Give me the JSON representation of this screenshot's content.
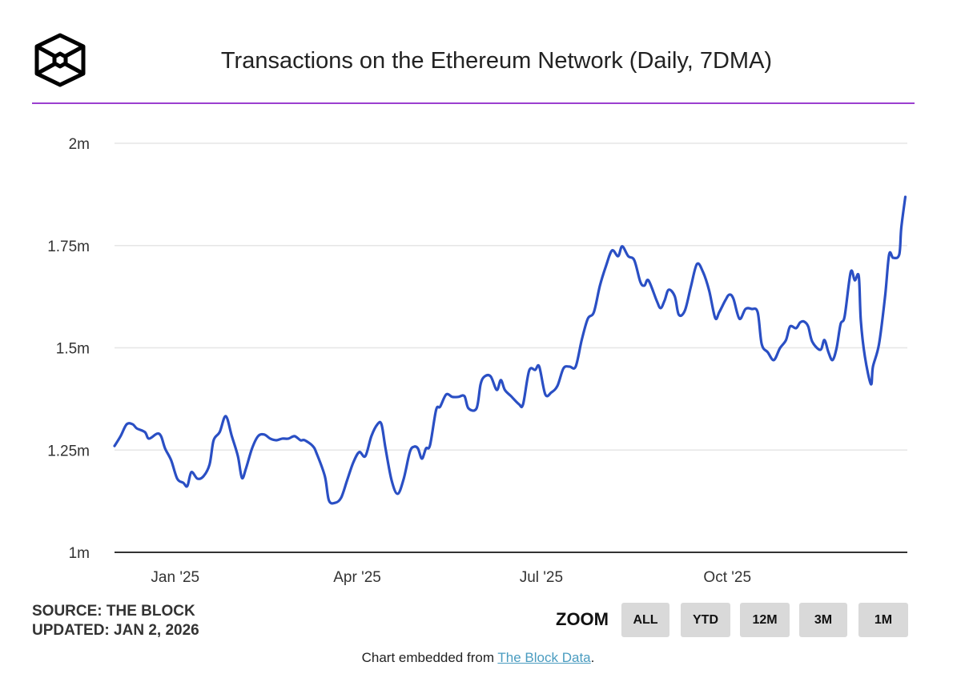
{
  "logo": {
    "icon": "the-block-cube-logo",
    "text": "The Block"
  },
  "colors": {
    "line": "#2a4fc4",
    "rule": "#9b3fd0",
    "grid": "#e6e6e6",
    "axis": "#333333",
    "button_bg": "#d9d9d9",
    "link": "#4a9cc0"
  },
  "footer": {
    "source": "SOURCE: THE BLOCK",
    "updated": "UPDATED: JAN 2, 2026",
    "zoom_label": "ZOOM",
    "zoom_buttons": [
      "ALL",
      "YTD",
      "12M",
      "3M",
      "1M"
    ],
    "caption_prefix": "Chart embedded from ",
    "caption_link": "The Block Data",
    "caption_suffix": "."
  },
  "chart_data": {
    "type": "line",
    "title": "Transactions on the Ethereum Network (Daily, 7DMA)",
    "xlabel": "",
    "ylabel": "",
    "xlim": [
      "2024-12-02",
      "2025-12-29"
    ],
    "ylim": [
      1.0,
      2.0
    ],
    "y_unit": "millions",
    "yticks": [
      1.0,
      1.25,
      1.5,
      1.75,
      2.0
    ],
    "ytick_labels": [
      "1m",
      "1.25m",
      "1.5m",
      "1.75m",
      "2m"
    ],
    "xticks": [
      "2025-01-01",
      "2025-04-01",
      "2025-07-01",
      "2025-10-01"
    ],
    "xtick_labels": [
      "Jan '25",
      "Apr '25",
      "Jul '25",
      "Oct '25"
    ],
    "grid": true,
    "legend": "none",
    "series": [
      {
        "points": [
          [
            "2024-12-02",
            1.26
          ],
          [
            "2024-12-05",
            1.284
          ],
          [
            "2024-12-08",
            1.313
          ],
          [
            "2024-12-11",
            1.313
          ],
          [
            "2024-12-13",
            1.303
          ],
          [
            "2024-12-17",
            1.294
          ],
          [
            "2024-12-19",
            1.278
          ],
          [
            "2024-12-23",
            1.29
          ],
          [
            "2024-12-25",
            1.284
          ],
          [
            "2024-12-27",
            1.254
          ],
          [
            "2024-12-30",
            1.225
          ],
          [
            "2025-01-02",
            1.18
          ],
          [
            "2025-01-05",
            1.17
          ],
          [
            "2025-01-07",
            1.162
          ],
          [
            "2025-01-09",
            1.196
          ],
          [
            "2025-01-12",
            1.18
          ],
          [
            "2025-01-15",
            1.186
          ],
          [
            "2025-01-18",
            1.215
          ],
          [
            "2025-01-20",
            1.274
          ],
          [
            "2025-01-23",
            1.294
          ],
          [
            "2025-01-26",
            1.333
          ],
          [
            "2025-01-29",
            1.284
          ],
          [
            "2025-02-01",
            1.235
          ],
          [
            "2025-02-03",
            1.182
          ],
          [
            "2025-02-05",
            1.205
          ],
          [
            "2025-02-08",
            1.254
          ],
          [
            "2025-02-11",
            1.284
          ],
          [
            "2025-02-14",
            1.288
          ],
          [
            "2025-02-17",
            1.278
          ],
          [
            "2025-02-20",
            1.274
          ],
          [
            "2025-02-23",
            1.278
          ],
          [
            "2025-02-26",
            1.278
          ],
          [
            "2025-03-01",
            1.284
          ],
          [
            "2025-03-04",
            1.274
          ],
          [
            "2025-03-06",
            1.274
          ],
          [
            "2025-03-10",
            1.26
          ],
          [
            "2025-03-12",
            1.241
          ],
          [
            "2025-03-16",
            1.186
          ],
          [
            "2025-03-18",
            1.127
          ],
          [
            "2025-03-21",
            1.121
          ],
          [
            "2025-03-24",
            1.133
          ],
          [
            "2025-03-27",
            1.176
          ],
          [
            "2025-03-30",
            1.219
          ],
          [
            "2025-04-02",
            1.245
          ],
          [
            "2025-04-05",
            1.235
          ],
          [
            "2025-04-08",
            1.284
          ],
          [
            "2025-04-11",
            1.313
          ],
          [
            "2025-04-13",
            1.313
          ],
          [
            "2025-04-15",
            1.254
          ],
          [
            "2025-04-18",
            1.176
          ],
          [
            "2025-04-21",
            1.143
          ],
          [
            "2025-04-24",
            1.18
          ],
          [
            "2025-04-27",
            1.245
          ],
          [
            "2025-04-29",
            1.258
          ],
          [
            "2025-05-01",
            1.254
          ],
          [
            "2025-05-03",
            1.229
          ],
          [
            "2025-05-05",
            1.254
          ],
          [
            "2025-05-07",
            1.262
          ],
          [
            "2025-05-10",
            1.348
          ],
          [
            "2025-05-12",
            1.356
          ],
          [
            "2025-05-15",
            1.386
          ],
          [
            "2025-05-18",
            1.38
          ],
          [
            "2025-05-21",
            1.38
          ],
          [
            "2025-05-24",
            1.382
          ],
          [
            "2025-05-26",
            1.352
          ],
          [
            "2025-05-30",
            1.352
          ],
          [
            "2025-06-01",
            1.411
          ],
          [
            "2025-06-03",
            1.43
          ],
          [
            "2025-06-06",
            1.43
          ],
          [
            "2025-06-09",
            1.397
          ],
          [
            "2025-06-11",
            1.421
          ],
          [
            "2025-06-13",
            1.397
          ],
          [
            "2025-06-16",
            1.382
          ],
          [
            "2025-06-20",
            1.362
          ],
          [
            "2025-06-22",
            1.362
          ],
          [
            "2025-06-25",
            1.444
          ],
          [
            "2025-06-28",
            1.446
          ],
          [
            "2025-06-30",
            1.454
          ],
          [
            "2025-07-03",
            1.386
          ],
          [
            "2025-07-06",
            1.391
          ],
          [
            "2025-07-09",
            1.407
          ],
          [
            "2025-07-12",
            1.45
          ],
          [
            "2025-07-15",
            1.454
          ],
          [
            "2025-07-18",
            1.454
          ],
          [
            "2025-07-21",
            1.519
          ],
          [
            "2025-07-24",
            1.571
          ],
          [
            "2025-07-27",
            1.587
          ],
          [
            "2025-07-30",
            1.652
          ],
          [
            "2025-08-02",
            1.7
          ],
          [
            "2025-08-05",
            1.738
          ],
          [
            "2025-08-08",
            1.724
          ],
          [
            "2025-08-10",
            1.748
          ],
          [
            "2025-08-13",
            1.724
          ],
          [
            "2025-08-16",
            1.714
          ],
          [
            "2025-08-19",
            1.661
          ],
          [
            "2025-08-21",
            1.652
          ],
          [
            "2025-08-23",
            1.665
          ],
          [
            "2025-08-27",
            1.616
          ],
          [
            "2025-08-29",
            1.597
          ],
          [
            "2025-08-31",
            1.616
          ],
          [
            "2025-09-02",
            1.642
          ],
          [
            "2025-09-05",
            1.626
          ],
          [
            "2025-09-07",
            1.581
          ],
          [
            "2025-09-10",
            1.591
          ],
          [
            "2025-09-13",
            1.65
          ],
          [
            "2025-09-16",
            1.705
          ],
          [
            "2025-09-19",
            1.685
          ],
          [
            "2025-09-22",
            1.64
          ],
          [
            "2025-09-25",
            1.573
          ],
          [
            "2025-09-27",
            1.587
          ],
          [
            "2025-09-30",
            1.616
          ],
          [
            "2025-10-02",
            1.63
          ],
          [
            "2025-10-04",
            1.62
          ],
          [
            "2025-10-07",
            1.571
          ],
          [
            "2025-10-10",
            1.595
          ],
          [
            "2025-10-13",
            1.595
          ],
          [
            "2025-10-16",
            1.587
          ],
          [
            "2025-10-18",
            1.509
          ],
          [
            "2025-10-21",
            1.489
          ],
          [
            "2025-10-24",
            1.47
          ],
          [
            "2025-10-27",
            1.499
          ],
          [
            "2025-10-30",
            1.519
          ],
          [
            "2025-11-01",
            1.552
          ],
          [
            "2025-11-04",
            1.548
          ],
          [
            "2025-11-06",
            1.562
          ],
          [
            "2025-11-08",
            1.564
          ],
          [
            "2025-11-10",
            1.552
          ],
          [
            "2025-11-12",
            1.515
          ],
          [
            "2025-11-16",
            1.495
          ],
          [
            "2025-11-18",
            1.519
          ],
          [
            "2025-11-20",
            1.489
          ],
          [
            "2025-11-22",
            1.47
          ],
          [
            "2025-11-24",
            1.499
          ],
          [
            "2025-11-26",
            1.558
          ],
          [
            "2025-11-28",
            1.577
          ],
          [
            "2025-12-01",
            1.685
          ],
          [
            "2025-12-03",
            1.665
          ],
          [
            "2025-12-05",
            1.675
          ],
          [
            "2025-12-06",
            1.567
          ],
          [
            "2025-12-08",
            1.479
          ],
          [
            "2025-12-11",
            1.411
          ],
          [
            "2025-12-12",
            1.454
          ],
          [
            "2025-12-15",
            1.509
          ],
          [
            "2025-12-18",
            1.626
          ],
          [
            "2025-12-20",
            1.728
          ],
          [
            "2025-12-22",
            1.72
          ],
          [
            "2025-12-25",
            1.728
          ],
          [
            "2025-12-26",
            1.793
          ],
          [
            "2025-12-28",
            1.869
          ]
        ]
      }
    ]
  }
}
